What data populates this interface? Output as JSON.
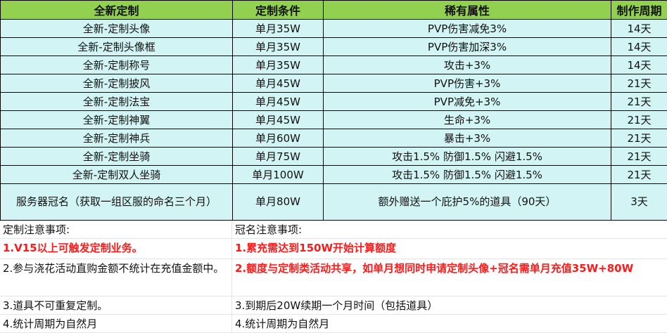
{
  "table": {
    "headers": [
      "全新定制",
      "定制条件",
      "稀有属性",
      "制作周期"
    ],
    "rows": [
      [
        "全新-定制头像",
        "单月35W",
        "PVP伤害减免3%",
        "14天"
      ],
      [
        "全新-定制头像框",
        "单月35W",
        "PVP伤害加深3%",
        "14天"
      ],
      [
        "全新-定制称号",
        "单月35W",
        "攻击+3%",
        "14天"
      ],
      [
        "全新-定制披风",
        "单月45W",
        "PVP伤害+3%",
        "21天"
      ],
      [
        "全新-定制法宝",
        "单月45W",
        "PVP减免+3%",
        "21天"
      ],
      [
        "全新-定制神翼",
        "单月45W",
        "生命+3%",
        "21天"
      ],
      [
        "全新-定制神兵",
        "单月60W",
        "暴击+3%",
        "21天"
      ],
      [
        "全新-定制坐骑",
        "单月75W",
        "攻击1.5%  防御1.5%  闪避1.5%",
        "21天"
      ],
      [
        "全新-定制双人坐骑",
        "单月100W",
        "攻击1.5%  防御1.5%  闪避1.5%",
        "21天"
      ],
      [
        "服务器冠名（获取一组区服的命名三个月）",
        "单月80W",
        "额外赠送一个庇护5%的道具（90天）",
        "3天"
      ]
    ]
  },
  "notes": {
    "left_title": "定制注意事项:",
    "right_title": "冠名注意事项:",
    "left": [
      "1.V15以上可触发定制业务。",
      "2.参与浇花活动直购金额不统计在充值金额中。",
      "3.道具不可重复定制。",
      "4.统计周期为自然月"
    ],
    "right": [
      "1.累充需达到150W开始计算额度",
      "2.额度与定制类活动共享，如单月想同时申请定制头像+冠名需单月充值35W+80W",
      "3.到期后20W续期一个月时间（包括道具）",
      "4.统计周期为自然月"
    ]
  },
  "colors": {
    "header": "#92d050",
    "cell": "#d2f4f4",
    "highlight": "#ff1a1a"
  }
}
